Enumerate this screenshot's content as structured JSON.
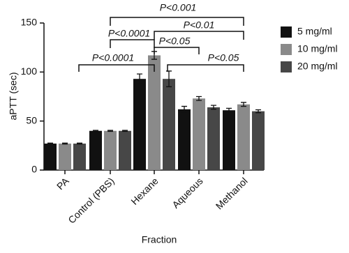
{
  "chart_data": {
    "type": "bar",
    "categories": [
      "PA",
      "Control (PBS)",
      "Hexane",
      "Aqueous",
      "Methanol"
    ],
    "series": [
      {
        "name": "5 mg/ml",
        "color": "#111111",
        "values": [
          27,
          40,
          93,
          62,
          61
        ],
        "errors": [
          0.5,
          0.5,
          5,
          3,
          2
        ]
      },
      {
        "name": "10 mg/ml",
        "color": "#8a8a8a",
        "values": [
          27,
          40,
          117,
          73,
          67
        ],
        "errors": [
          0.5,
          0.5,
          4,
          2,
          2
        ]
      },
      {
        "name": "20 mg/ml",
        "color": "#474747",
        "values": [
          27,
          40,
          93,
          64,
          60
        ],
        "errors": [
          0.5,
          0.5,
          8,
          2,
          1.5
        ]
      }
    ],
    "ylim": [
      0,
      150
    ],
    "yticks": [
      0,
      50,
      100,
      150
    ],
    "y_label": "aPTT (sec)",
    "x_label": "Fraction",
    "legend": "right",
    "annotations": [
      "P<0.001",
      "P<0.01",
      "P<0.0001",
      "P<0.05",
      "P<0.0001",
      "P<0.05"
    ]
  }
}
